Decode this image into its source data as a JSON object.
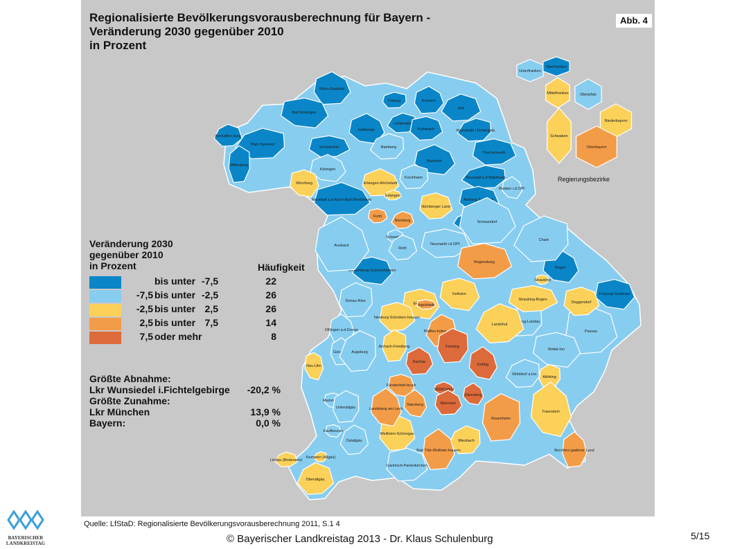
{
  "title": {
    "line1": "Regionalisierte Bevölkerungsvorausberechnung für Bayern -",
    "line2": "Veränderung 2030 gegenüber 2010",
    "line3": "in Prozent"
  },
  "figure_tag": "Abb. 4",
  "legend": {
    "heading_line1": "Veränderung 2030",
    "heading_line2": "gegenüber 2010",
    "heading_line3": "in Prozent",
    "count_heading": "Häufigkeit",
    "classes": [
      {
        "from": "",
        "op": "bis unter",
        "to": "-7,5",
        "count": "22",
        "color": "#0a86c8"
      },
      {
        "from": "-7,5",
        "op": "bis unter",
        "to": "-2,5",
        "count": "26",
        "color": "#87cdf0"
      },
      {
        "from": "-2,5",
        "op": "bis unter",
        "to": "2,5",
        "count": "26",
        "color": "#fbd15a"
      },
      {
        "from": "2,5",
        "op": "bis unter",
        "to": "7,5",
        "count": "14",
        "color": "#f39c48"
      },
      {
        "from": "7,5",
        "op": "oder mehr",
        "to": "",
        "count": "8",
        "color": "#dd6a3a"
      }
    ]
  },
  "stats": {
    "decrease_heading": "Größte Abnahme:",
    "decrease_name": "Lkr Wunsiedel i.Fichtelgebirge",
    "decrease_value": "-20,2 %",
    "increase_heading": "Größte Zunahme:",
    "increase_name": "Lkr München",
    "increase_value": "13,9 %",
    "bayern_name": "Bayern:",
    "bayern_value": "0,0 %"
  },
  "inset_title": "Regierungsbezirke",
  "regions": [
    {
      "name": "Rhön-Grabfeld",
      "class": 0
    },
    {
      "name": "Bad Kissingen",
      "class": 0
    },
    {
      "name": "Aschaffen-burg",
      "class": 0
    },
    {
      "name": "Main-Spessart",
      "class": 0
    },
    {
      "name": "Miltenberg",
      "class": 0
    },
    {
      "name": "Haßberge",
      "class": 0
    },
    {
      "name": "Schweinfurt",
      "class": 0
    },
    {
      "name": "Coburg",
      "class": 0
    },
    {
      "name": "Kronach",
      "class": 0
    },
    {
      "name": "Lichtenfels",
      "class": 0
    },
    {
      "name": "Kulmbach",
      "class": 0
    },
    {
      "name": "Hof",
      "class": 0
    },
    {
      "name": "Wunsiedel i.Fichtelgeb.",
      "class": 0
    },
    {
      "name": "Tirschenreuth",
      "class": 0
    },
    {
      "name": "Bayreuth",
      "class": 0
    },
    {
      "name": "Neustadt a.d.Waldnaab",
      "class": 0
    },
    {
      "name": "Neustadt a.d.Aisch-Bad Windsheim",
      "class": 0
    },
    {
      "name": "Amberg-Sulzbach",
      "class": 0
    },
    {
      "name": "Amberg",
      "class": 0
    },
    {
      "name": "Weißenburg-Gunzenhausen",
      "class": 0
    },
    {
      "name": "Regen",
      "class": 0
    },
    {
      "name": "Freyung-Grafenau",
      "class": 0
    },
    {
      "name": "Bamberg",
      "class": 1
    },
    {
      "name": "Kitzingen",
      "class": 1
    },
    {
      "name": "Forchheim",
      "class": 1
    },
    {
      "name": "Weiden i.d.OPf.",
      "class": 1
    },
    {
      "name": "Schwandorf",
      "class": 1
    },
    {
      "name": "Cham",
      "class": 1
    },
    {
      "name": "Ansbach",
      "class": 1
    },
    {
      "name": "Schwabach",
      "class": 1
    },
    {
      "name": "Roth",
      "class": 1
    },
    {
      "name": "Neumarkt i.d.OPf.",
      "class": 1
    },
    {
      "name": "Donau-Ries",
      "class": 1
    },
    {
      "name": "Dillingen a.d.Donau",
      "class": 1
    },
    {
      "name": "Günzburg",
      "class": 1
    },
    {
      "name": "Augsburg",
      "class": 1
    },
    {
      "name": "Memmingen",
      "class": 1
    },
    {
      "name": "Unterallgäu",
      "class": 1
    },
    {
      "name": "Kaufbeuren",
      "class": 1
    },
    {
      "name": "Ostallgäu",
      "class": 1
    },
    {
      "name": "Garmisch-Partenkirchen",
      "class": 1
    },
    {
      "name": "Dingolfing-Landau",
      "class": 1
    },
    {
      "name": "Passau",
      "class": 1
    },
    {
      "name": "Rottal-Inn",
      "class": 1
    },
    {
      "name": "Mühldorf a.Inn",
      "class": 1
    },
    {
      "name": "Würzburg",
      "class": 2
    },
    {
      "name": "Erlangen-Höchstadt",
      "class": 2
    },
    {
      "name": "Erlangen",
      "class": 2
    },
    {
      "name": "Nürnberger Land",
      "class": 2
    },
    {
      "name": "Eichstätt",
      "class": 2
    },
    {
      "name": "Kelheim",
      "class": 2
    },
    {
      "name": "Straubing",
      "class": 2
    },
    {
      "name": "Deggendorf",
      "class": 2
    },
    {
      "name": "Straubing-Bogen",
      "class": 2
    },
    {
      "name": "Landshut",
      "class": 2
    },
    {
      "name": "Neuburg-Schroben-hausen",
      "class": 2
    },
    {
      "name": "Aichach-Friedberg",
      "class": 2
    },
    {
      "name": "Neu-Ulm",
      "class": 2
    },
    {
      "name": "Altötting",
      "class": 2
    },
    {
      "name": "Traunstein",
      "class": 2
    },
    {
      "name": "Weilheim-Schongau",
      "class": 2
    },
    {
      "name": "Lindau (Bodensee)",
      "class": 2
    },
    {
      "name": "Kempten (Allgäu)",
      "class": 2
    },
    {
      "name": "Oberallgäu",
      "class": 2
    },
    {
      "name": "Miesbach",
      "class": 2
    },
    {
      "name": "Fürth",
      "class": 3
    },
    {
      "name": "Nürnberg",
      "class": 3
    },
    {
      "name": "Regensburg",
      "class": 3
    },
    {
      "name": "Ingolstadt",
      "class": 3
    },
    {
      "name": "Pfaffen-hofen a.d.Ilm",
      "class": 3
    },
    {
      "name": "Fürstenfeld-bruck",
      "class": 3
    },
    {
      "name": "Landsberg am Lech",
      "class": 3
    },
    {
      "name": "Starnberg",
      "class": 3
    },
    {
      "name": "Rosenheim",
      "class": 3
    },
    {
      "name": "Bad Tölz-Wolfrats-hausen",
      "class": 3
    },
    {
      "name": "Berchtes-gadener Land",
      "class": 3
    },
    {
      "name": "Freising",
      "class": 4
    },
    {
      "name": "Dachau",
      "class": 4
    },
    {
      "name": "Erding",
      "class": 4
    },
    {
      "name": "MÜNCHEN",
      "class": 4
    },
    {
      "name": "Ebersberg",
      "class": 4
    },
    {
      "name": "München",
      "class": 4
    }
  ],
  "bezirke": [
    {
      "name": "Unterfranken",
      "class": 1
    },
    {
      "name": "Oberfranken",
      "class": 0
    },
    {
      "name": "Mittelfranken",
      "class": 2
    },
    {
      "name": "Oberpfalz",
      "class": 1
    },
    {
      "name": "Niederbayern",
      "class": 2
    },
    {
      "name": "Schwaben",
      "class": 2
    },
    {
      "name": "Oberbayern",
      "class": 3
    }
  ],
  "source": "Quelle:  LfStaD: Regionalisierte Bevölkerungsvorausberechnung 2011, S.1 4",
  "footer": "© Bayerischer Landkreistag 2013 - Dr. Klaus Schulenburg",
  "page": "5/15",
  "logo_text_line1": "BAYERISCHER",
  "logo_text_line2": "LANDKREISTAG"
}
